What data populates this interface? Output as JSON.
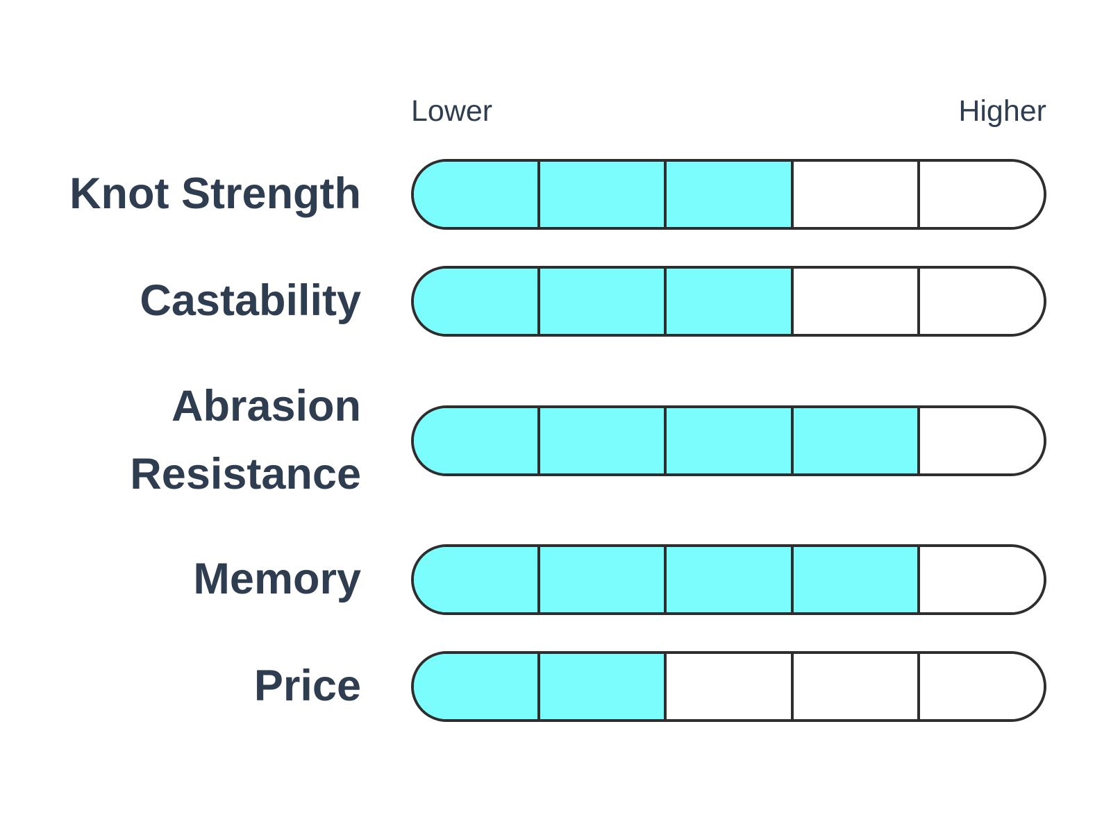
{
  "chart_data": {
    "type": "bar",
    "orientation": "horizontal",
    "title": "",
    "categories": [
      "Knot Strength",
      "Castability",
      "Abrasion Resistance",
      "Memory",
      "Price"
    ],
    "values": [
      3,
      3,
      4,
      4,
      2
    ],
    "scale": {
      "segments": 5,
      "min": 0,
      "max": 5,
      "min_label": "Lower",
      "max_label": "Higher"
    },
    "legend": "none",
    "grid": false,
    "colors": {
      "fill": "#7BFCFD",
      "empty": "#FFFFFF",
      "border": "#2E2E2E",
      "label_text": "#2E3D50",
      "background": "#FFFFFF"
    }
  }
}
